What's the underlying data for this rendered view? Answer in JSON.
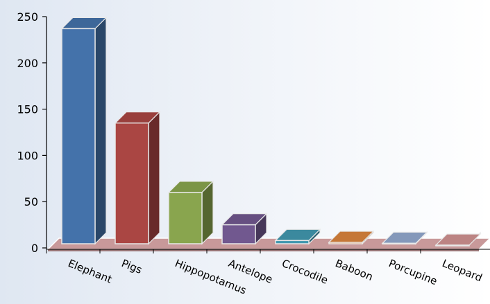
{
  "chart_data": {
    "type": "bar",
    "style": "3d-column",
    "categories": [
      "Elephant",
      "Pigs",
      "Hippopotamus",
      "Antelope",
      "Crocodile",
      "Baboon",
      "Porcupine",
      "Leopard"
    ],
    "values": [
      237,
      135,
      60,
      25,
      8,
      6,
      5,
      3
    ],
    "ylim": [
      0,
      250
    ],
    "yticks": [
      0,
      50,
      100,
      150,
      200,
      250
    ],
    "grid": false,
    "legend": "none",
    "colors": [
      "#4472aa",
      "#aa4643",
      "#89a54e",
      "#71588f",
      "#4198af",
      "#db843d",
      "#93a9cf",
      "#d19392"
    ],
    "floor_color": "#c8999a"
  }
}
